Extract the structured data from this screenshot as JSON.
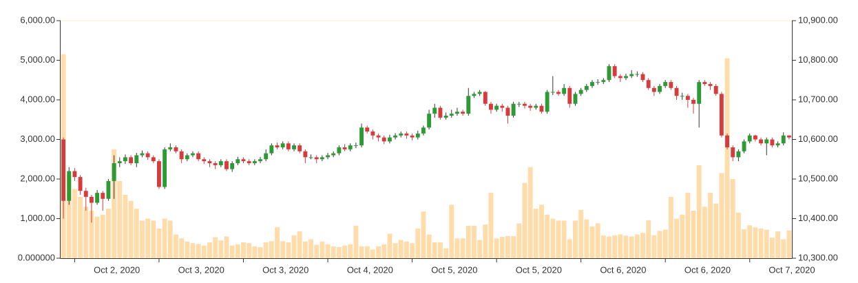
{
  "chart_data": {
    "type": "candlestick",
    "xtick_labels": [
      "Oct 2, 2020",
      "Oct 3, 2020",
      "Oct 3, 2020",
      "Oct 4, 2020",
      "Oct 5, 2020",
      "Oct 5, 2020",
      "Oct 6, 2020",
      "Oct 6, 2020",
      "Oct 7, 2020"
    ],
    "ylim": [
      0,
      6000
    ],
    "yticks": [
      {
        "value": 0,
        "label": "0.000000"
      },
      {
        "value": 1000,
        "label": "1,000.00"
      },
      {
        "value": 2000,
        "label": "2,000.00"
      },
      {
        "value": 3000,
        "label": "3,000.00"
      },
      {
        "value": 4000,
        "label": "4,000.00"
      },
      {
        "value": 5000,
        "label": "5,000.00"
      },
      {
        "value": 6000,
        "label": "6,000.00"
      }
    ],
    "y2lim": [
      10300,
      10900
    ],
    "y2ticks": [
      {
        "value": 10300,
        "label": "10,300.00"
      },
      {
        "value": 10400,
        "label": "10,400.00"
      },
      {
        "value": 10500,
        "label": "10,500.00"
      },
      {
        "value": 10600,
        "label": "10,600.00"
      },
      {
        "value": 10700,
        "label": "10,700.00"
      },
      {
        "value": 10800,
        "label": "10,800.00"
      },
      {
        "value": 10900,
        "label": "10,900.00"
      }
    ],
    "up_color": "#2e9a35",
    "down_color": "#d43d3d",
    "volume_color": "#ffdcaa",
    "price": {
      "axis": "y2",
      "open": [
        10600,
        10445,
        10520,
        10505,
        10470,
        10455,
        10440,
        10465,
        10450,
        10495,
        10540,
        10545,
        10555,
        10540,
        10560,
        10565,
        10555,
        10545,
        10480,
        10575,
        10580,
        10570,
        10550,
        10560,
        10565,
        10550,
        10545,
        10540,
        10535,
        10545,
        10525,
        10540,
        10550,
        10545,
        10540,
        10545,
        10550,
        10565,
        10585,
        10580,
        10590,
        10575,
        10585,
        10570,
        10555,
        10555,
        10550,
        10555,
        10560,
        10565,
        10580,
        10575,
        10585,
        10585,
        10630,
        10620,
        10610,
        10605,
        10595,
        10605,
        10610,
        10615,
        10610,
        10605,
        10615,
        10630,
        10665,
        10680,
        10655,
        10660,
        10665,
        10670,
        10665,
        10710,
        10715,
        10720,
        10690,
        10675,
        10685,
        10680,
        10660,
        10690,
        10690,
        10685,
        10680,
        10685,
        10670,
        10720,
        10720,
        10715,
        10730,
        10690,
        10715,
        10725,
        10735,
        10745,
        10745,
        10750,
        10785,
        10760,
        10755,
        10760,
        10765,
        10765,
        10750,
        10730,
        10720,
        10735,
        10745,
        10730,
        10710,
        10710,
        10700,
        10690,
        10745,
        10740,
        10735,
        10715,
        10610,
        10580,
        10555,
        10570,
        10595,
        10610,
        10600,
        10590,
        10600,
        10585,
        10590,
        10610
      ],
      "high": [
        10605,
        10530,
        10528,
        10510,
        10478,
        10460,
        10472,
        10470,
        10500,
        10560,
        10555,
        10562,
        10560,
        10566,
        10572,
        10570,
        10560,
        10550,
        10580,
        10590,
        10585,
        10575,
        10565,
        10570,
        10570,
        10555,
        10550,
        10545,
        10550,
        10550,
        10545,
        10556,
        10555,
        10550,
        10550,
        10556,
        10575,
        10590,
        10592,
        10595,
        10595,
        10590,
        10590,
        10575,
        10562,
        10560,
        10560,
        10566,
        10570,
        10585,
        10588,
        10590,
        10592,
        10640,
        10635,
        10625,
        10615,
        10610,
        10612,
        10616,
        10620,
        10620,
        10615,
        10622,
        10635,
        10675,
        10690,
        10685,
        10668,
        10675,
        10680,
        10675,
        10730,
        10720,
        10725,
        10722,
        10695,
        10690,
        10690,
        10685,
        10695,
        10695,
        10695,
        10690,
        10690,
        10690,
        10725,
        10760,
        10725,
        10740,
        10735,
        10720,
        10730,
        10740,
        10750,
        10752,
        10755,
        10790,
        10790,
        10765,
        10766,
        10775,
        10772,
        10770,
        10755,
        10735,
        10740,
        10750,
        10750,
        10735,
        10718,
        10715,
        10705,
        10750,
        10750,
        10745,
        10740,
        10720,
        10615,
        10585,
        10575,
        10600,
        10615,
        10612,
        10605,
        10605,
        10605,
        10595,
        10618,
        10610
      ],
      "low": [
        10400,
        10435,
        10495,
        10460,
        10420,
        10390,
        10435,
        10420,
        10445,
        10450,
        10530,
        10538,
        10535,
        10530,
        10555,
        10548,
        10540,
        10475,
        10475,
        10570,
        10565,
        10540,
        10545,
        10555,
        10545,
        10538,
        10530,
        10525,
        10530,
        10520,
        10518,
        10535,
        10540,
        10535,
        10535,
        10540,
        10545,
        10560,
        10575,
        10575,
        10570,
        10570,
        10565,
        10540,
        10550,
        10540,
        10545,
        10550,
        10555,
        10560,
        10570,
        10570,
        10578,
        10580,
        10615,
        10600,
        10595,
        10588,
        10590,
        10600,
        10605,
        10602,
        10598,
        10600,
        10610,
        10625,
        10655,
        10650,
        10650,
        10655,
        10660,
        10660,
        10660,
        10705,
        10710,
        10685,
        10665,
        10670,
        10670,
        10640,
        10655,
        10682,
        10678,
        10672,
        10675,
        10665,
        10665,
        10712,
        10710,
        10710,
        10680,
        10685,
        10710,
        10720,
        10730,
        10738,
        10740,
        10745,
        10755,
        10745,
        10750,
        10755,
        10758,
        10745,
        10725,
        10710,
        10715,
        10730,
        10725,
        10700,
        10700,
        10680,
        10665,
        10630,
        10735,
        10725,
        10710,
        10605,
        10575,
        10545,
        10545,
        10565,
        10590,
        10595,
        10585,
        10560,
        10580,
        10580,
        10585,
        10600
      ],
      "close": [
        10445,
        10520,
        10505,
        10470,
        10455,
        10440,
        10465,
        10450,
        10495,
        10540,
        10545,
        10555,
        10540,
        10560,
        10565,
        10555,
        10545,
        10480,
        10575,
        10580,
        10570,
        10550,
        10560,
        10565,
        10550,
        10545,
        10540,
        10535,
        10545,
        10525,
        10540,
        10550,
        10545,
        10540,
        10545,
        10550,
        10565,
        10585,
        10580,
        10590,
        10575,
        10585,
        10570,
        10555,
        10555,
        10550,
        10555,
        10560,
        10565,
        10580,
        10575,
        10585,
        10585,
        10630,
        10620,
        10610,
        10605,
        10595,
        10605,
        10610,
        10615,
        10610,
        10605,
        10615,
        10630,
        10665,
        10680,
        10655,
        10660,
        10665,
        10670,
        10665,
        10710,
        10715,
        10720,
        10690,
        10675,
        10685,
        10680,
        10660,
        10690,
        10690,
        10685,
        10680,
        10685,
        10670,
        10720,
        10720,
        10715,
        10730,
        10690,
        10715,
        10725,
        10735,
        10745,
        10745,
        10750,
        10785,
        10760,
        10755,
        10760,
        10765,
        10765,
        10750,
        10730,
        10720,
        10735,
        10745,
        10730,
        10710,
        10710,
        10700,
        10690,
        10745,
        10740,
        10735,
        10715,
        10610,
        10580,
        10555,
        10570,
        10595,
        10610,
        10600,
        10590,
        10600,
        10585,
        10590,
        10610,
        10605
      ]
    },
    "volume": [
      5150,
      2100,
      1750,
      1550,
      1300,
      1200,
      1050,
      1100,
      1250,
      2750,
      1950,
      1600,
      1450,
      1250,
      950,
      1000,
      950,
      750,
      1000,
      950,
      600,
      500,
      420,
      380,
      360,
      320,
      400,
      530,
      450,
      550,
      320,
      350,
      400,
      380,
      300,
      280,
      400,
      430,
      780,
      430,
      400,
      580,
      680,
      420,
      480,
      340,
      420,
      350,
      300,
      280,
      320,
      350,
      820,
      300,
      300,
      220,
      300,
      350,
      620,
      380,
      460,
      420,
      380,
      750,
      1180,
      600,
      400,
      400,
      250,
      1350,
      500,
      500,
      820,
      820,
      460,
      850,
      1650,
      500,
      540,
      560,
      560,
      880,
      1900,
      2300,
      1250,
      1350,
      1100,
      1000,
      950,
      950,
      480,
      950,
      1220,
      980,
      800,
      880,
      570,
      550,
      580,
      600,
      570,
      550,
      600,
      640,
      960,
      580,
      690,
      720,
      1550,
      1000,
      1100,
      1650,
      1200,
      2350,
      1300,
      1650,
      1380,
      2150,
      5050,
      2000,
      1150,
      730,
      830,
      780,
      750,
      720,
      520,
      680,
      480,
      700
    ]
  }
}
